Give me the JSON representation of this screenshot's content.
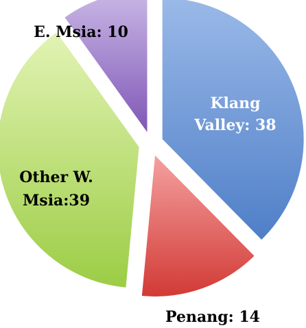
{
  "chart_data": {
    "type": "pie",
    "style": "exploded pie with gradient-filled slices",
    "slices": [
      {
        "label_lines": [
          "Klang",
          "Valley: 38"
        ],
        "value": 38,
        "color": "#4f7fc8",
        "color_light": "#9ab9e8",
        "label_color": "#ffffff"
      },
      {
        "label_lines": [
          "Penang: 14"
        ],
        "value": 14,
        "color": "#d23a35",
        "color_light": "#f4a1a0",
        "label_color": "#000000"
      },
      {
        "label_lines": [
          "Other W.",
          "Msia:39"
        ],
        "value": 39,
        "color": "#9ccd45",
        "color_light": "#e2f3b4",
        "label_color": "#000000"
      },
      {
        "label_lines": [
          "E. Msia: 10"
        ],
        "value": 10,
        "color": "#7f57b6",
        "color_light": "#cab8e6",
        "label_color": "#000000"
      }
    ]
  }
}
